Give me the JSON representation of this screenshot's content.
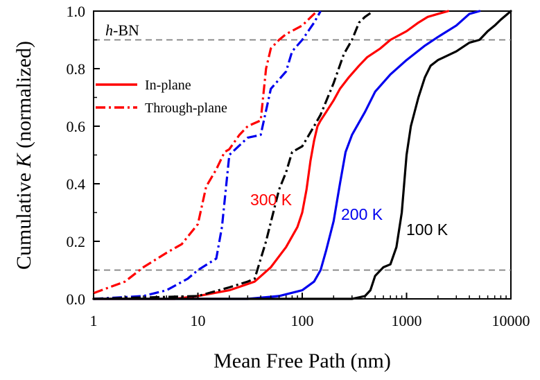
{
  "chart_data": {
    "type": "line",
    "title": "",
    "xlabel": "Mean Free Path (nm)",
    "ylabel_prefix": "Cumulative ",
    "ylabel_symbol": "K",
    "ylabel_suffix": " (normalized)",
    "x_scale": "log",
    "xlim": [
      1,
      10000
    ],
    "ylim": [
      0,
      1.0
    ],
    "x_ticks": [
      1,
      10,
      100,
      1000,
      10000
    ],
    "x_tick_labels": [
      "1",
      "10",
      "100",
      "1000",
      "10000"
    ],
    "y_ticks": [
      0,
      0.2,
      0.4,
      0.6,
      0.8,
      1.0
    ],
    "y_tick_labels": [
      "0.0",
      "0.2",
      "0.4",
      "0.6",
      "0.8",
      "1.0"
    ],
    "reference_lines": [
      0.1,
      0.9
    ],
    "material_italic": "h",
    "material_rest": "-BN",
    "legend": {
      "in_plane": "In-plane",
      "through_plane": "Through-plane"
    },
    "colors": {
      "100K": "#000000",
      "200K": "#0000ee",
      "300K": "#ff0000",
      "reference": "#7f7f7f"
    },
    "labels": {
      "300K": "300 K",
      "200K": "200 K",
      "100K": "100 K"
    },
    "series": [
      {
        "temperature": "300 K",
        "direction": "In-plane",
        "style": "solid",
        "color": "#ff0000",
        "x": [
          1,
          6,
          10,
          20,
          35,
          50,
          70,
          90,
          100,
          110,
          120,
          130,
          140,
          150,
          170,
          200,
          230,
          280,
          350,
          420,
          560,
          700,
          1000,
          1300,
          1600,
          2000,
          2500
        ],
        "y": [
          0.0,
          0.0,
          0.01,
          0.03,
          0.06,
          0.11,
          0.18,
          0.25,
          0.3,
          0.38,
          0.48,
          0.55,
          0.6,
          0.62,
          0.65,
          0.69,
          0.73,
          0.77,
          0.81,
          0.84,
          0.87,
          0.9,
          0.93,
          0.96,
          0.98,
          0.99,
          1.0
        ]
      },
      {
        "temperature": "200 K",
        "direction": "In-plane",
        "style": "solid",
        "color": "#0000ee",
        "x": [
          1,
          10,
          30,
          60,
          100,
          130,
          150,
          170,
          200,
          230,
          260,
          300,
          400,
          500,
          700,
          1000,
          1500,
          2000,
          3000,
          4000,
          5000
        ],
        "y": [
          0.0,
          0.0,
          0.0,
          0.01,
          0.03,
          0.06,
          0.1,
          0.17,
          0.27,
          0.4,
          0.51,
          0.57,
          0.65,
          0.72,
          0.78,
          0.83,
          0.88,
          0.91,
          0.95,
          0.99,
          1.0
        ]
      },
      {
        "temperature": "100 K",
        "direction": "In-plane",
        "style": "solid",
        "color": "#000000",
        "x": [
          1,
          100,
          300,
          400,
          450,
          500,
          600,
          700,
          800,
          900,
          1000,
          1100,
          1300,
          1500,
          1700,
          2000,
          3000,
          4000,
          5000,
          6000,
          7000,
          8000,
          10000
        ],
        "y": [
          0.0,
          0.0,
          0.0,
          0.01,
          0.03,
          0.08,
          0.11,
          0.12,
          0.18,
          0.3,
          0.5,
          0.6,
          0.7,
          0.77,
          0.81,
          0.83,
          0.86,
          0.89,
          0.9,
          0.93,
          0.95,
          0.97,
          1.0
        ]
      },
      {
        "temperature": "300 K",
        "direction": "Through-plane",
        "style": "dashdot",
        "color": "#ff0000",
        "x": [
          1,
          2,
          3,
          5,
          7,
          10,
          12,
          15,
          18,
          20,
          25,
          30,
          40,
          45,
          50,
          60,
          70,
          100,
          130,
          140
        ],
        "y": [
          0.02,
          0.06,
          0.11,
          0.16,
          0.19,
          0.26,
          0.39,
          0.45,
          0.51,
          0.52,
          0.57,
          0.6,
          0.62,
          0.8,
          0.87,
          0.9,
          0.92,
          0.95,
          0.99,
          1.0
        ]
      },
      {
        "temperature": "200 K",
        "direction": "Through-plane",
        "style": "dashdot",
        "color": "#0000ee",
        "x": [
          1,
          3,
          5,
          8,
          10,
          15,
          17,
          20,
          30,
          40,
          50,
          70,
          80,
          100,
          130,
          150
        ],
        "y": [
          0.0,
          0.01,
          0.03,
          0.07,
          0.1,
          0.14,
          0.25,
          0.5,
          0.56,
          0.57,
          0.73,
          0.79,
          0.86,
          0.9,
          0.96,
          1.0
        ]
      },
      {
        "temperature": "100 K",
        "direction": "Through-plane",
        "style": "dashdot",
        "color": "#000000",
        "x": [
          1,
          10,
          20,
          30,
          35,
          45,
          60,
          70,
          80,
          100,
          130,
          150,
          200,
          250,
          300,
          350,
          400,
          480
        ],
        "y": [
          0.0,
          0.01,
          0.04,
          0.06,
          0.07,
          0.2,
          0.38,
          0.44,
          0.51,
          0.53,
          0.6,
          0.64,
          0.75,
          0.85,
          0.9,
          0.96,
          0.98,
          1.0
        ]
      }
    ]
  }
}
